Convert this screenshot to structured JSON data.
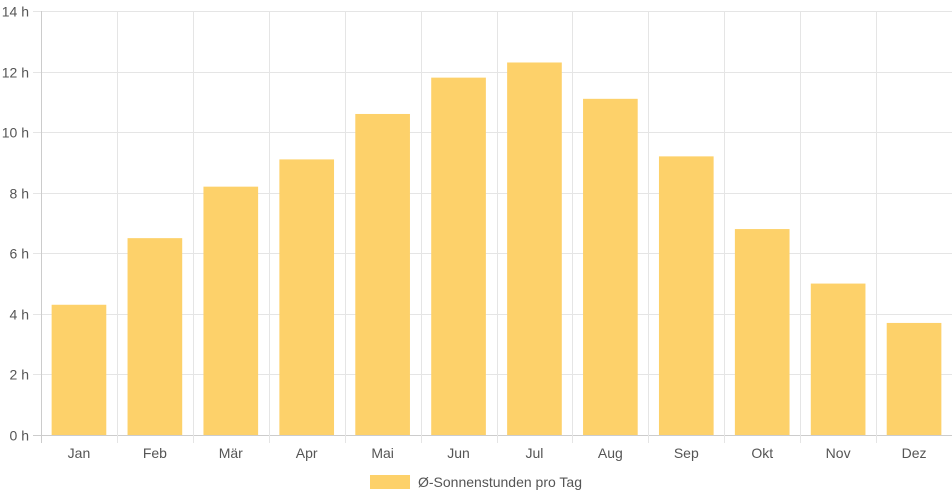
{
  "chart_data": {
    "type": "bar",
    "categories": [
      "Jan",
      "Feb",
      "Mär",
      "Apr",
      "Mai",
      "Jun",
      "Jul",
      "Aug",
      "Sep",
      "Okt",
      "Nov",
      "Dez"
    ],
    "series": [
      {
        "name": "Ø-Sonnenstunden pro Tag",
        "values": [
          4.3,
          6.5,
          8.2,
          9.1,
          10.6,
          11.8,
          12.3,
          11.1,
          9.2,
          6.8,
          5.0,
          3.7
        ],
        "color": "#fdd16a"
      }
    ],
    "ylim": [
      0,
      14
    ],
    "ytick_step": 2,
    "ytick_suffix": " h",
    "grid": true,
    "legend_position": "bottom-center"
  },
  "colors": {
    "bar": "#fdd16a",
    "grid": "#e5e5e5",
    "axis": "#cccccc"
  }
}
